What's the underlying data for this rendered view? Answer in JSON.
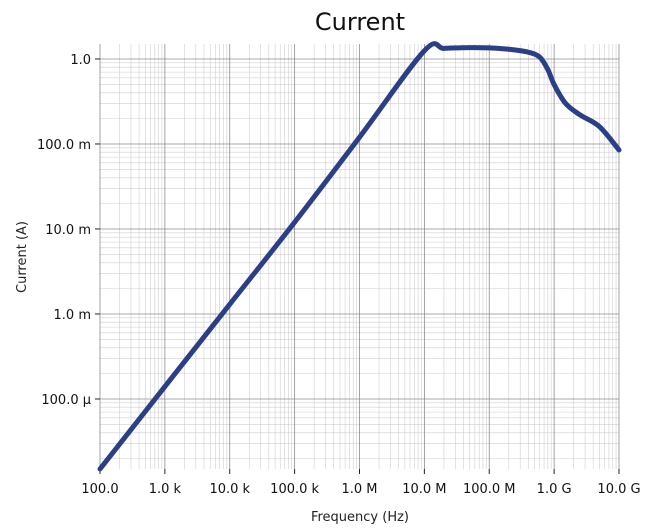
{
  "chart_data": {
    "type": "line",
    "title": "Current",
    "xlabel": "Frequency (Hz)",
    "ylabel": "Current (A)",
    "x_scale": "log",
    "y_scale": "log",
    "xlim": [
      100,
      10000000000
    ],
    "ylim": [
      1.5e-05,
      1.5
    ],
    "grid": true,
    "x_ticks": [
      {
        "value": 100,
        "label": "100.0"
      },
      {
        "value": 1000,
        "label": "1.0 k"
      },
      {
        "value": 10000,
        "label": "10.0 k"
      },
      {
        "value": 100000,
        "label": "100.0 k"
      },
      {
        "value": 1000000,
        "label": "1.0 M"
      },
      {
        "value": 10000000,
        "label": "10.0 M"
      },
      {
        "value": 100000000,
        "label": "100.0 M"
      },
      {
        "value": 1000000000,
        "label": "1.0 G"
      },
      {
        "value": 10000000000,
        "label": "10.0 G"
      }
    ],
    "y_ticks": [
      {
        "value": 0.0001,
        "label": "100.0 µ"
      },
      {
        "value": 0.001,
        "label": "1.0 m"
      },
      {
        "value": 0.01,
        "label": "10.0 m"
      },
      {
        "value": 0.1,
        "label": "100.0 m"
      },
      {
        "value": 1,
        "label": "1.0"
      }
    ],
    "series": [
      {
        "color": "#2b3f87",
        "x": [
          100,
          1000,
          10000,
          100000,
          1000000,
          10000000,
          20000000,
          50000000,
          100000000,
          200000000,
          400000000,
          600000000,
          800000000,
          1000000000,
          1500000000,
          2500000000,
          5000000000,
          10000000000
        ],
        "y": [
          1.5e-05,
          0.00014,
          0.0013,
          0.012,
          0.12,
          1.25,
          1.33,
          1.36,
          1.35,
          1.3,
          1.2,
          1.05,
          0.75,
          0.5,
          0.3,
          0.22,
          0.16,
          0.085
        ]
      }
    ]
  }
}
